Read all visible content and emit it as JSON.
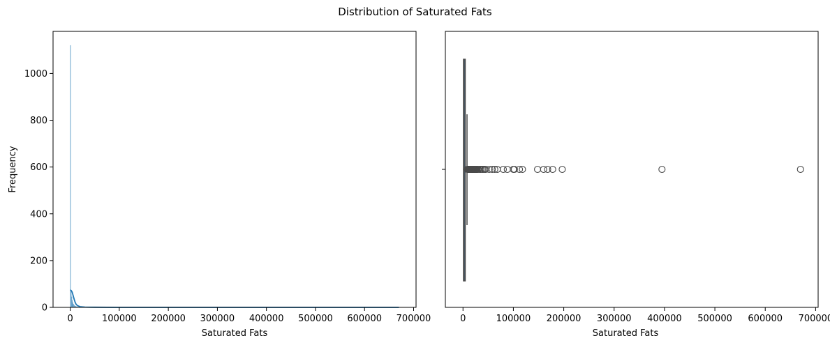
{
  "figure": {
    "title": "Distribution of Saturated Fats"
  },
  "chart_data": [
    {
      "type": "histogram",
      "xlabel": "Saturated Fats",
      "ylabel": "Frequency",
      "xlim": [
        -35000,
        705000
      ],
      "ylim": [
        0,
        1180
      ],
      "xticks": [
        0,
        100000,
        200000,
        300000,
        400000,
        500000,
        600000,
        700000
      ],
      "yticks": [
        0,
        200,
        400,
        600,
        800,
        1000
      ],
      "grid": false,
      "colors": {
        "bar": "#1f77b4",
        "kde": "#1f77b4"
      },
      "bins": [
        {
          "x": 0,
          "count": 1120
        },
        {
          "x": 1200,
          "count": 70
        },
        {
          "x": 2400,
          "count": 45
        },
        {
          "x": 3600,
          "count": 30
        },
        {
          "x": 4800,
          "count": 20
        },
        {
          "x": 6000,
          "count": 14
        },
        {
          "x": 7200,
          "count": 10
        },
        {
          "x": 8400,
          "count": 7
        },
        {
          "x": 9600,
          "count": 5
        },
        {
          "x": 10800,
          "count": 4
        },
        {
          "x": 12000,
          "count": 3
        },
        {
          "x": 14400,
          "count": 2
        },
        {
          "x": 18000,
          "count": 1
        }
      ],
      "bin_width": 1200,
      "kde": {
        "x": [
          0,
          2000,
          4000,
          6000,
          8000,
          10000,
          12000,
          15000,
          20000,
          30000,
          50000,
          100000,
          300000,
          500000,
          670000
        ],
        "y": [
          75,
          72,
          65,
          50,
          35,
          22,
          13,
          7,
          3,
          1,
          0.5,
          0,
          0,
          0,
          0
        ]
      }
    },
    {
      "type": "box",
      "xlabel": "Saturated Fats",
      "xlim": [
        -35000,
        705000
      ],
      "xticks": [
        0,
        100000,
        200000,
        300000,
        400000,
        500000,
        600000,
        700000
      ],
      "grid": false,
      "colors": {
        "box": "#4a4a4a",
        "outlier": "#4a4a4a"
      },
      "box": {
        "q1": 1000,
        "median": 2000,
        "q3": 3500,
        "whisker_low": 0,
        "whisker_high": 8000
      },
      "outliers": [
        9000,
        10000,
        11000,
        12000,
        13000,
        14000,
        15000,
        16000,
        17000,
        18000,
        19000,
        20000,
        21000,
        22000,
        23000,
        24000,
        25000,
        26000,
        27000,
        28000,
        30000,
        33000,
        35000,
        38000,
        40000,
        43000,
        45000,
        52000,
        58000,
        63000,
        68000,
        80000,
        88000,
        100000,
        102000,
        112000,
        118000,
        148000,
        160000,
        168000,
        178000,
        197000,
        395000,
        670000
      ]
    }
  ]
}
